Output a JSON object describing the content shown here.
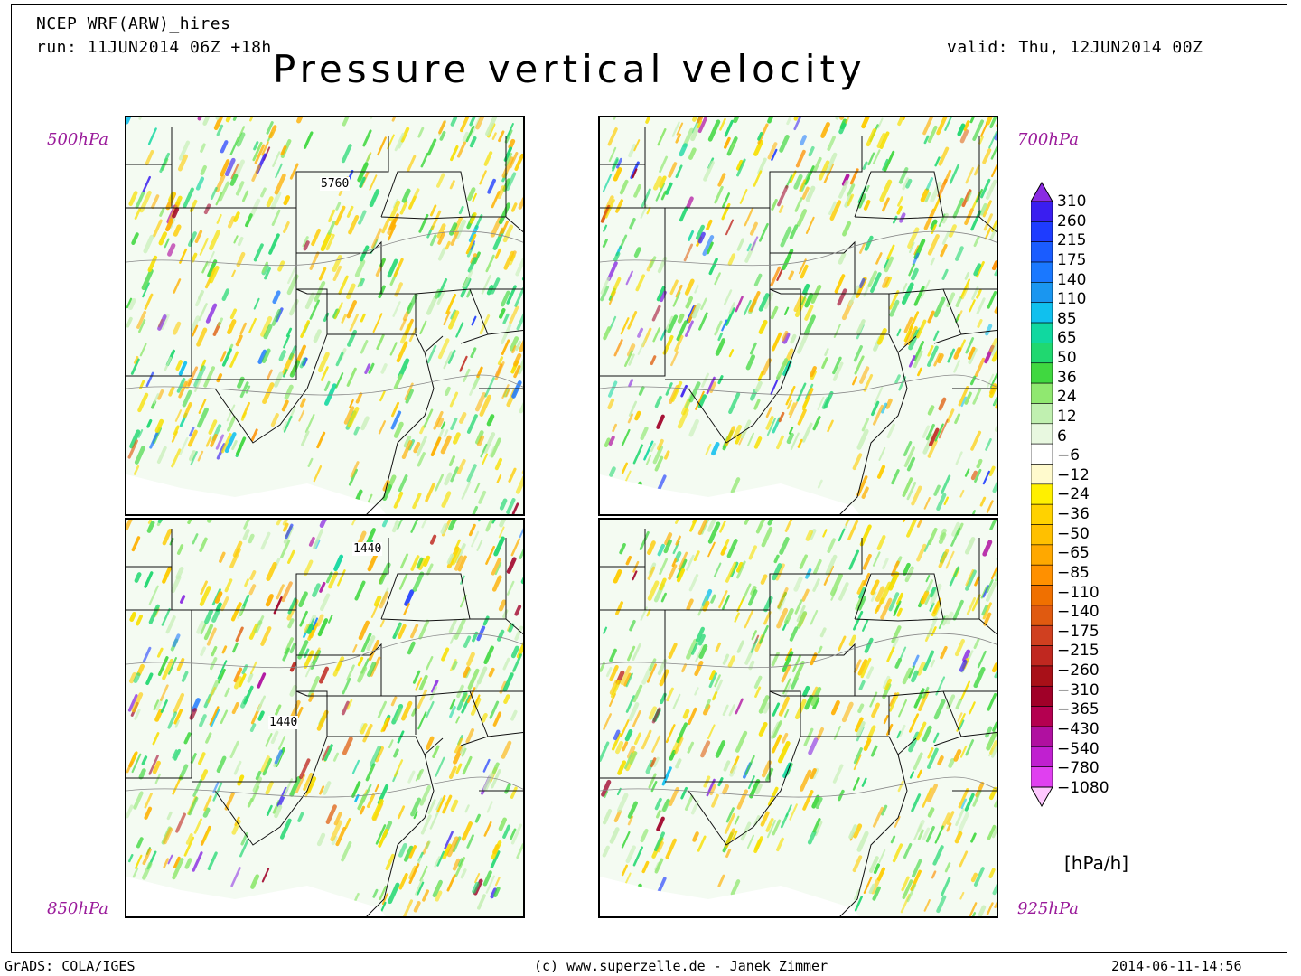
{
  "header": {
    "model": "NCEP WRF(ARW)_hires",
    "run": "run: 11JUN2014 06Z +18h",
    "valid": "valid: Thu, 12JUN2014 00Z",
    "title": "Pressure vertical velocity"
  },
  "panels": [
    {
      "level": "500hPa",
      "contour_labels": [
        "5760"
      ],
      "activity": 0.55
    },
    {
      "level": "700hPa",
      "contour_labels": [],
      "activity": 0.85
    },
    {
      "level": "850hPa",
      "contour_labels": [
        "1440",
        "1440"
      ],
      "activity": 0.65
    },
    {
      "level": "925hPa",
      "contour_labels": [],
      "activity": 0.35
    }
  ],
  "colorbar": {
    "labels": [
      "310",
      "260",
      "215",
      "175",
      "140",
      "110",
      "85",
      "65",
      "50",
      "36",
      "24",
      "12",
      "6",
      "-6",
      "-12",
      "-24",
      "-36",
      "-50",
      "-65",
      "-85",
      "-110",
      "-140",
      "-175",
      "-215",
      "-260",
      "-310",
      "-365",
      "-430",
      "-540",
      "-780",
      "-1080"
    ],
    "colors": [
      "#8a2be2",
      "#3a1ef0",
      "#1e3cff",
      "#1a5cff",
      "#1a78ff",
      "#1a96f0",
      "#10c0ee",
      "#10d8a0",
      "#20d870",
      "#40d840",
      "#90e870",
      "#c0f0b0",
      "#e8f8e0",
      "#ffffff",
      "#fffacd",
      "#fff000",
      "#ffd200",
      "#ffc000",
      "#ffa800",
      "#ff9000",
      "#f07000",
      "#e05a10",
      "#d04020",
      "#c02820",
      "#a81018",
      "#a00028",
      "#b40050",
      "#b010a0",
      "#c020d0",
      "#e040f0",
      "#ffc8ff"
    ],
    "unit": "[hPa/h]"
  },
  "footer": {
    "left": "GrADS: COLA/IGES",
    "center": "(c) www.superzelle.de - Janek Zimmer",
    "right": "2014-06-11-14:56"
  }
}
